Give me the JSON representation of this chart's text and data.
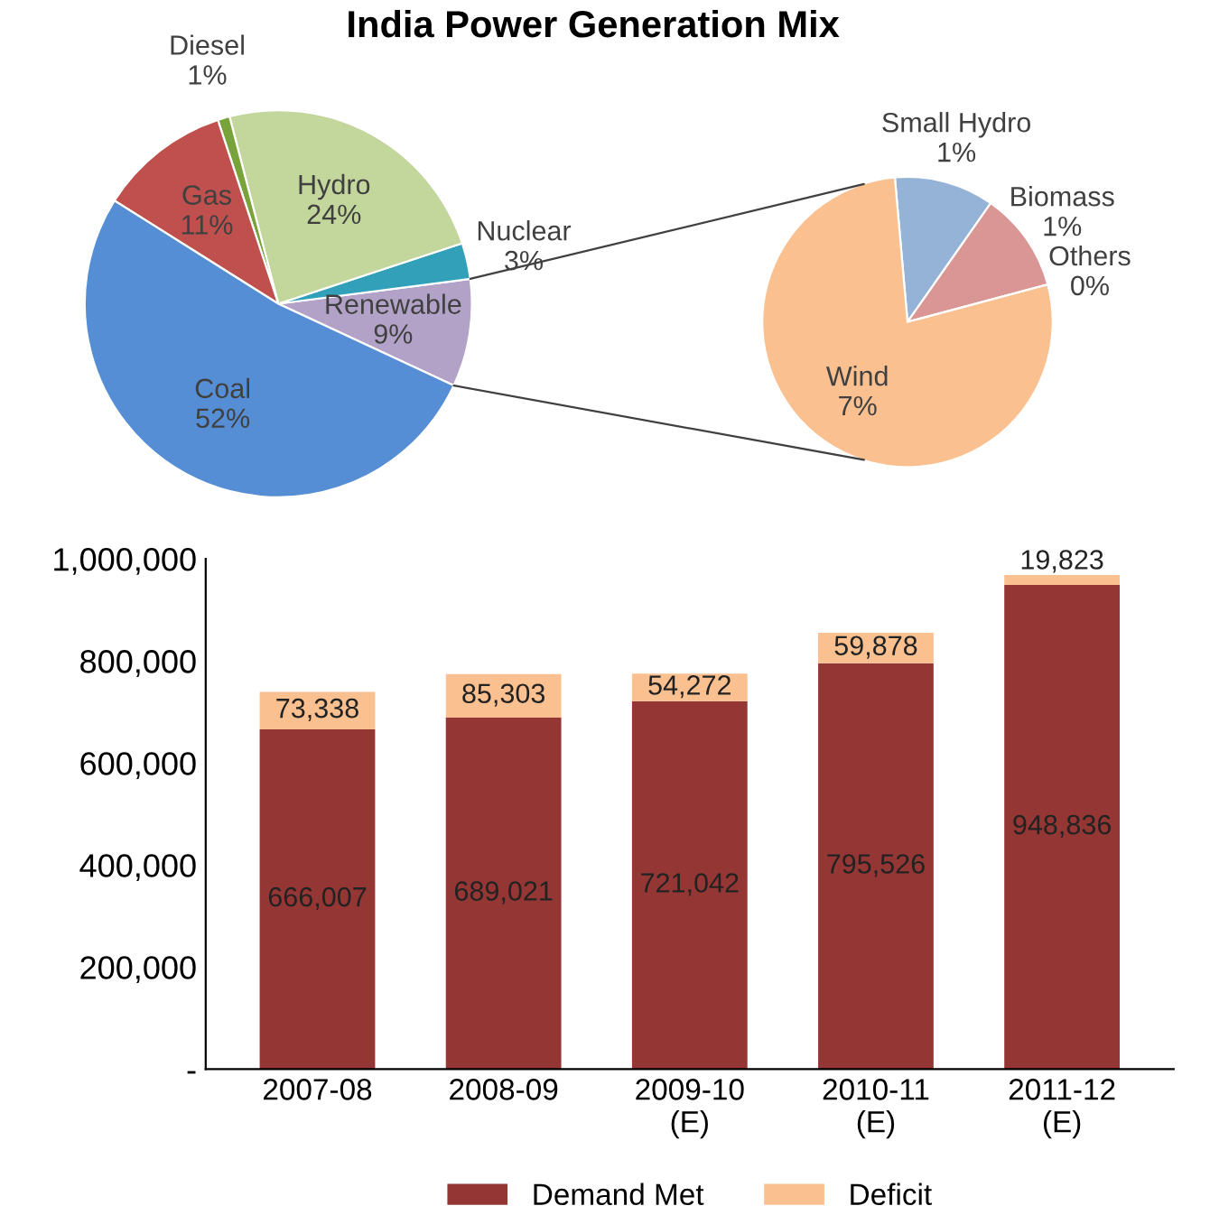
{
  "chart_data": [
    {
      "type": "pie",
      "title": "India Power Generation Mix",
      "categories": [
        "Renewable",
        "Nuclear",
        "Hydro",
        "Diesel",
        "Gas",
        "Coal"
      ],
      "values": [
        9,
        3,
        24,
        1,
        11,
        52
      ],
      "value_labels": [
        "9%",
        "3%",
        "24%",
        "1%",
        "11%",
        "52%"
      ],
      "colors": [
        "#b3a2c7",
        "#31a0b8",
        "#c3d69b",
        "#77a33a",
        "#c0504d",
        "#558ed5"
      ]
    },
    {
      "type": "pie",
      "categories": [
        "Small Hydro",
        "Biomass",
        "Others",
        "Wind"
      ],
      "values": [
        1,
        1,
        0,
        7
      ],
      "value_labels": [
        "1%",
        "1%",
        "0%",
        "7%"
      ],
      "colors": [
        "#95b3d7",
        "#d99694",
        "#c3d69b",
        "#fac090"
      ]
    },
    {
      "type": "bar",
      "stacked": true,
      "categories": [
        "2007-08",
        "2008-09",
        "2009-10\n(E)",
        "2010-11\n(E)",
        "2011-12\n(E)"
      ],
      "series": [
        {
          "name": "Demand Met",
          "color": "#943634",
          "values": [
            666007,
            689021,
            721042,
            795526,
            948836
          ],
          "value_labels": [
            "666,007",
            "689,021",
            "721,042",
            "795,526",
            "948,836"
          ]
        },
        {
          "name": "Deficit",
          "color": "#fac090",
          "values": [
            73338,
            85303,
            54272,
            59878,
            19823
          ],
          "value_labels": [
            "73,338",
            "85,303",
            "54,272",
            "59,878",
            "19,823"
          ]
        }
      ],
      "ylim": [
        0,
        1000000
      ],
      "yticks": [
        {
          "value": 0,
          "label": "-"
        },
        {
          "value": 200000,
          "label": "200,000"
        },
        {
          "value": 400000,
          "label": "400,000"
        },
        {
          "value": 600000,
          "label": "600,000"
        },
        {
          "value": 800000,
          "label": "800,000"
        },
        {
          "value": 1000000,
          "label": "1,000,000"
        }
      ],
      "grid": false,
      "legend": "bottom"
    }
  ]
}
